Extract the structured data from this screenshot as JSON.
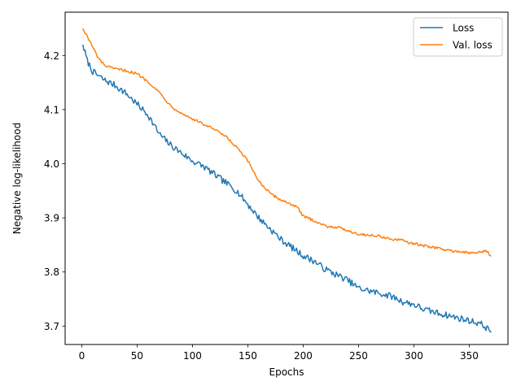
{
  "chart_data": {
    "type": "line",
    "title": "",
    "xlabel": "Epochs",
    "ylabel": "Negative log-likelihood",
    "xlim": [
      -15,
      385
    ],
    "ylim": [
      3.666,
      4.28
    ],
    "xticks": [
      0,
      50,
      100,
      150,
      200,
      250,
      300,
      350
    ],
    "yticks": [
      3.7,
      3.8,
      3.9,
      4.0,
      4.1,
      4.2
    ],
    "ytick_labels": [
      "3.7",
      "3.8",
      "3.9",
      "4.0",
      "4.1",
      "4.2"
    ],
    "grid": false,
    "legend_position": "top-right",
    "series": [
      {
        "name": "Loss",
        "color": "#1f77b4",
        "noise": 0.006,
        "points": [
          [
            1,
            4.22
          ],
          [
            5,
            4.19
          ],
          [
            10,
            4.17
          ],
          [
            20,
            4.155
          ],
          [
            30,
            4.145
          ],
          [
            40,
            4.13
          ],
          [
            50,
            4.11
          ],
          [
            60,
            4.09
          ],
          [
            70,
            4.055
          ],
          [
            80,
            4.035
          ],
          [
            90,
            4.02
          ],
          [
            100,
            4.005
          ],
          [
            110,
            3.995
          ],
          [
            120,
            3.98
          ],
          [
            130,
            3.965
          ],
          [
            140,
            3.95
          ],
          [
            150,
            3.925
          ],
          [
            160,
            3.9
          ],
          [
            170,
            3.88
          ],
          [
            180,
            3.86
          ],
          [
            190,
            3.845
          ],
          [
            200,
            3.83
          ],
          [
            210,
            3.82
          ],
          [
            220,
            3.805
          ],
          [
            230,
            3.795
          ],
          [
            240,
            3.785
          ],
          [
            250,
            3.77
          ],
          [
            260,
            3.765
          ],
          [
            270,
            3.76
          ],
          [
            280,
            3.755
          ],
          [
            290,
            3.745
          ],
          [
            300,
            3.74
          ],
          [
            310,
            3.73
          ],
          [
            320,
            3.725
          ],
          [
            330,
            3.72
          ],
          [
            340,
            3.715
          ],
          [
            350,
            3.71
          ],
          [
            360,
            3.705
          ],
          [
            370,
            3.69
          ]
        ]
      },
      {
        "name": "Val. loss",
        "color": "#ff7f0e",
        "noise": 0.0025,
        "points": [
          [
            1,
            4.25
          ],
          [
            5,
            4.235
          ],
          [
            10,
            4.215
          ],
          [
            15,
            4.195
          ],
          [
            20,
            4.183
          ],
          [
            25,
            4.178
          ],
          [
            30,
            4.175
          ],
          [
            40,
            4.172
          ],
          [
            50,
            4.166
          ],
          [
            60,
            4.152
          ],
          [
            70,
            4.132
          ],
          [
            80,
            4.108
          ],
          [
            90,
            4.093
          ],
          [
            100,
            4.083
          ],
          [
            110,
            4.073
          ],
          [
            120,
            4.063
          ],
          [
            130,
            4.05
          ],
          [
            140,
            4.03
          ],
          [
            150,
            4.005
          ],
          [
            160,
            3.968
          ],
          [
            170,
            3.945
          ],
          [
            180,
            3.933
          ],
          [
            190,
            3.925
          ],
          [
            195,
            3.918
          ],
          [
            200,
            3.903
          ],
          [
            210,
            3.895
          ],
          [
            220,
            3.885
          ],
          [
            230,
            3.883
          ],
          [
            240,
            3.877
          ],
          [
            250,
            3.87
          ],
          [
            260,
            3.868
          ],
          [
            270,
            3.866
          ],
          [
            280,
            3.86
          ],
          [
            290,
            3.858
          ],
          [
            300,
            3.852
          ],
          [
            310,
            3.848
          ],
          [
            320,
            3.845
          ],
          [
            330,
            3.84
          ],
          [
            340,
            3.838
          ],
          [
            350,
            3.835
          ],
          [
            360,
            3.836
          ],
          [
            365,
            3.84
          ],
          [
            370,
            3.83
          ]
        ]
      }
    ]
  }
}
